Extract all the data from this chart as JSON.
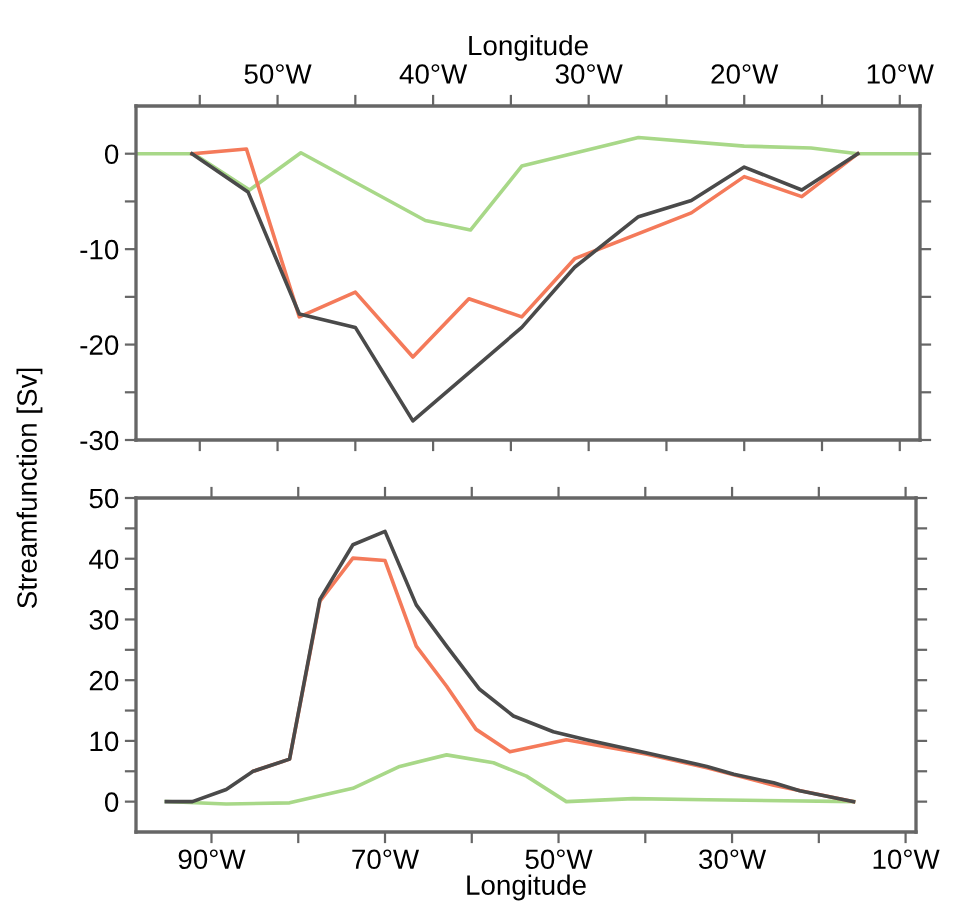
{
  "chart_data": [
    {
      "type": "line",
      "xlabel": "Longitude",
      "xlim": [
        -59.1,
        -8.7
      ],
      "xticks": [
        {
          "value": -55,
          "label": null
        },
        {
          "value": -50,
          "label": "50°W"
        },
        {
          "value": -45,
          "label": null
        },
        {
          "value": -40,
          "label": "40°W"
        },
        {
          "value": -35,
          "label": null
        },
        {
          "value": -30,
          "label": "30°W"
        },
        {
          "value": -25,
          "label": null
        },
        {
          "value": -20,
          "label": "20°W"
        },
        {
          "value": -15,
          "label": null
        },
        {
          "value": -10,
          "label": "10°W"
        }
      ],
      "ylim": [
        -30,
        5
      ],
      "yticks": [
        -30,
        {
          "value": -25,
          "label": null
        },
        -20,
        {
          "value": -15,
          "label": null
        },
        -10,
        {
          "value": -5,
          "label": null
        },
        0
      ],
      "grid": false,
      "legend": false,
      "marker": "none",
      "line_style": "solid",
      "series": [
        {
          "color": "#a8d888",
          "x": [
            -59.1,
            -55.4,
            -51.8,
            -48.5,
            -40.5,
            -37.6,
            -34.3,
            -26.8,
            -20.0,
            -15.7,
            -12.7,
            -8.8
          ],
          "values": [
            0,
            0,
            -3.8,
            0.1,
            -7,
            -8,
            -1.3,
            1.7,
            0.8,
            0.6,
            0,
            0
          ]
        },
        {
          "color": "#f47a5a",
          "x": [
            -55.5,
            -52.0,
            -48.6,
            -45.0,
            -41.3,
            -37.7,
            -34.3,
            -30.9,
            -23.4,
            -20.0,
            -16.3,
            -12.7
          ],
          "values": [
            0,
            0.5,
            -17.1,
            -14.5,
            -21.3,
            -15.2,
            -17.1,
            -11,
            -6.2,
            -2.4,
            -4.5,
            0
          ]
        },
        {
          "color": "#4a4a4a",
          "x": [
            -55.5,
            -51.9,
            -48.6,
            -45.0,
            -41.3,
            -34.3,
            -30.9,
            -26.8,
            -23.4,
            -20.0,
            -16.3,
            -12.7
          ],
          "values": [
            0,
            -4,
            -16.8,
            -18.2,
            -28,
            -18.2,
            -11.9,
            -6.6,
            -4.9,
            -1.4,
            -3.8,
            0
          ]
        }
      ]
    },
    {
      "type": "line",
      "xlabel": "Longitude",
      "ylabel": "Streamfunction [Sv]",
      "xlim": [
        -98.7,
        -8.8
      ],
      "xticks": [
        {
          "value": -90,
          "label": "90°W"
        },
        {
          "value": -80,
          "label": null
        },
        {
          "value": -70,
          "label": "70°W"
        },
        {
          "value": -60,
          "label": null
        },
        {
          "value": -50,
          "label": "50°W"
        },
        {
          "value": -40,
          "label": null
        },
        {
          "value": -30,
          "label": "30°W"
        },
        {
          "value": -20,
          "label": null
        },
        {
          "value": -10,
          "label": "10°W"
        }
      ],
      "ylim": [
        -5,
        50
      ],
      "yticks": [
        0,
        {
          "value": 5,
          "label": null
        },
        10,
        {
          "value": 15,
          "label": null
        },
        20,
        {
          "value": 25,
          "label": null
        },
        30,
        {
          "value": 35,
          "label": null
        },
        40,
        {
          "value": 45,
          "label": null
        },
        50
      ],
      "grid": false,
      "legend": false,
      "marker": "none",
      "line_style": "solid",
      "series": [
        {
          "color": "#a8d888",
          "x": [
            -95.2,
            -88.3,
            -81,
            -73.7,
            -68.3,
            -62.9,
            -57.5,
            -53.7,
            -49.1,
            -41.4,
            -32.9,
            -16
          ],
          "values": [
            0,
            -0.4,
            -0.2,
            2.2,
            5.8,
            7.7,
            6.4,
            4.2,
            0,
            0.5,
            0.3,
            0
          ]
        },
        {
          "color": "#f47a5a",
          "x": [
            -85.2,
            -81,
            -77.5,
            -73.7,
            -70,
            -66.4,
            -62.9,
            -59.5,
            -55.6,
            -49.1,
            -39.8,
            -32.9,
            -25.2,
            -16
          ],
          "values": [
            5,
            7,
            33,
            40.1,
            39.7,
            25.6,
            19,
            11.9,
            8.2,
            10.2,
            7.8,
            5.6,
            2.7,
            0
          ]
        },
        {
          "color": "#4a4a4a",
          "x": [
            -95.2,
            -92.2,
            -88.3,
            -85.2,
            -81,
            -77.5,
            -73.7,
            -70,
            -66.4,
            -62.9,
            -59.1,
            -55.2,
            -50.6,
            -46.8,
            -39.8,
            -32.9,
            -29.8,
            -25.2,
            -22.2,
            -16
          ],
          "values": [
            0,
            0,
            2,
            5,
            7,
            33.3,
            42.3,
            44.5,
            32.4,
            25.6,
            18.5,
            14.1,
            11.5,
            10.2,
            8,
            5.8,
            4.5,
            3.1,
            1.8,
            0
          ]
        }
      ]
    }
  ]
}
